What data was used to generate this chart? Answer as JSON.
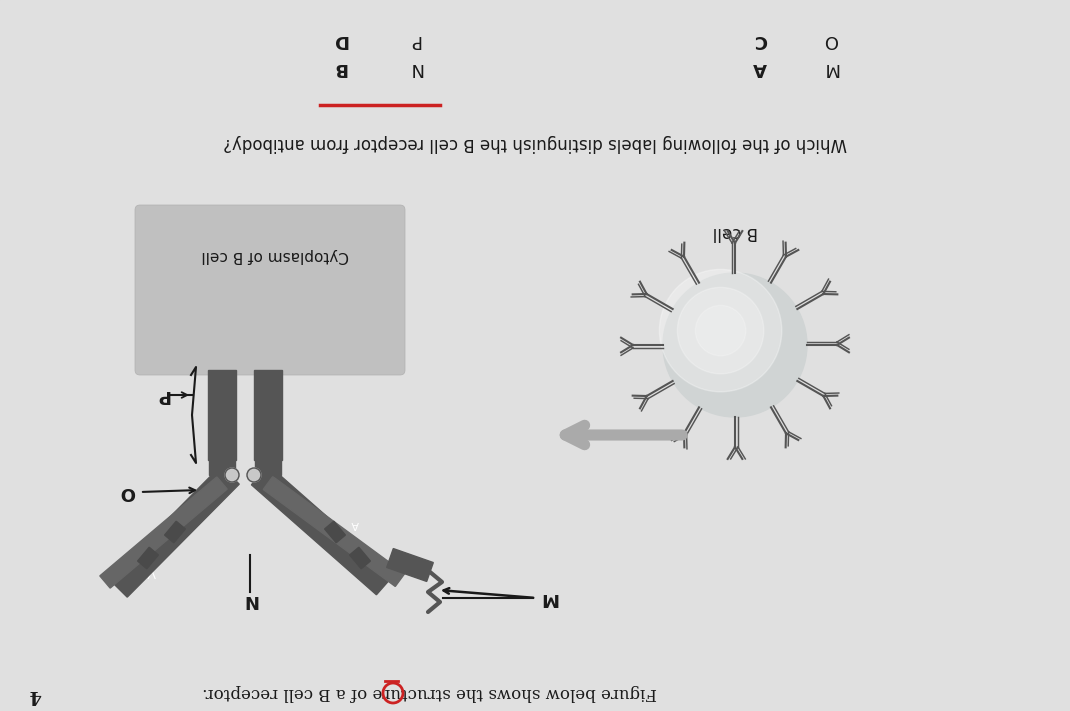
{
  "bg_color": "#d4d4d4",
  "diagram_bg": "#e8e8e8",
  "fig_w": 10.7,
  "fig_h": 7.11,
  "dpi": 100,
  "caption": "Figure below shows the structure of a B cell receptor.",
  "question": "Which of the following labels distinguish the B cell receptor from antibody?",
  "q_num": "4",
  "options_left": [
    [
      "B",
      "N"
    ],
    [
      "D",
      "P"
    ]
  ],
  "options_right": [
    [
      "A",
      "M"
    ],
    [
      "C",
      "O"
    ]
  ],
  "answer": "B",
  "underline_color": "#cc2222",
  "text_color": "#1a1a1a",
  "cyto_color": "#b0b0b0",
  "cell_color": "#c8cece",
  "bar_color": "#555555",
  "arm_dark": "#555555",
  "arm_mid": "#666666",
  "arm_light": "#888888"
}
